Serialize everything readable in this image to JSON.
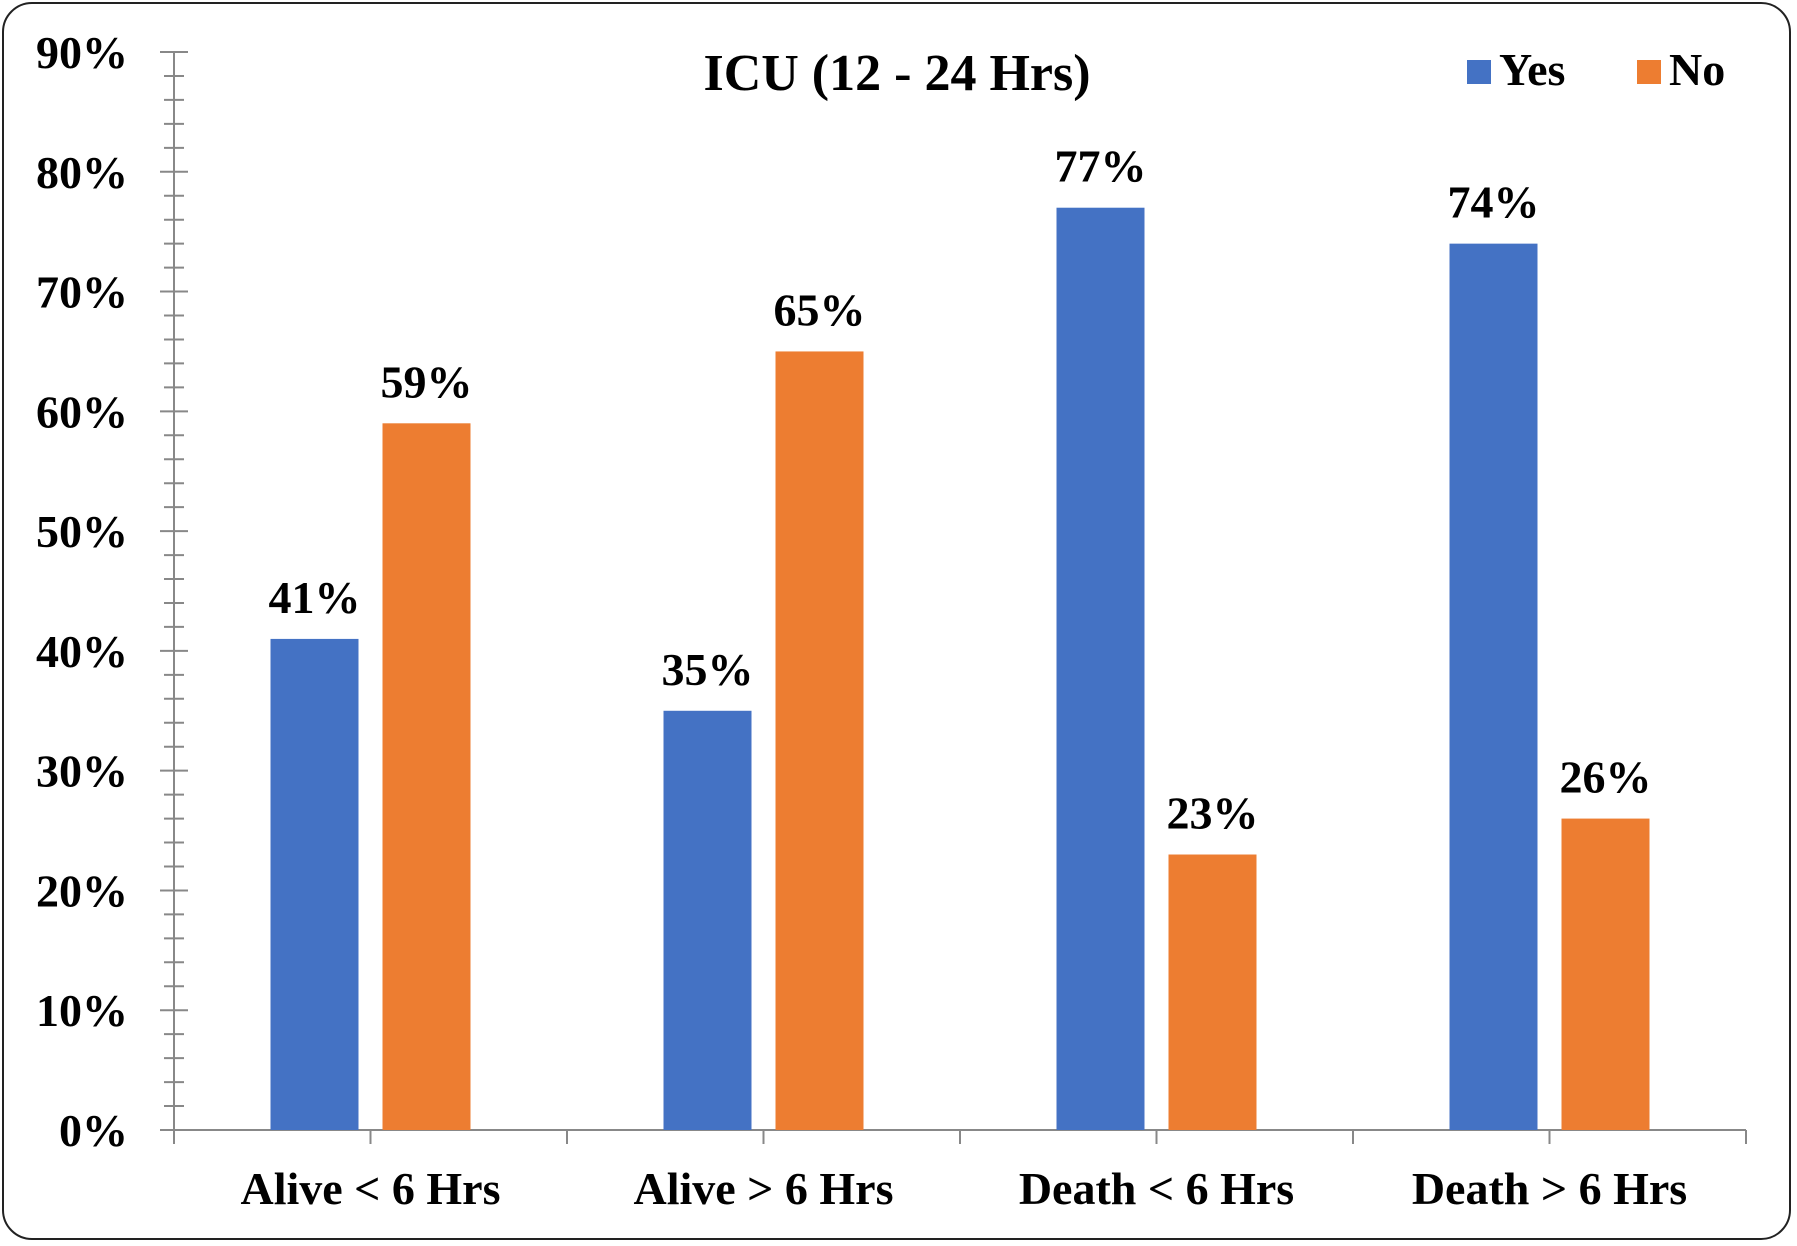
{
  "chart_data": {
    "type": "bar",
    "title": "ICU (12 - 24 Hrs)",
    "xlabel": "",
    "ylabel": "",
    "ylim": [
      0,
      90
    ],
    "yticks": [
      "0%",
      "10%",
      "20%",
      "30%",
      "40%",
      "50%",
      "60%",
      "70%",
      "80%",
      "90%"
    ],
    "categories": [
      "Alive < 6 Hrs",
      "Alive > 6 Hrs",
      "Death < 6 Hrs",
      "Death > 6 Hrs"
    ],
    "series": [
      {
        "name": "Yes",
        "color": "#4472C4",
        "values": [
          41,
          35,
          77,
          74
        ],
        "labels": [
          "41%",
          "35%",
          "77%",
          "74%"
        ]
      },
      {
        "name": "No",
        "color": "#ED7D31",
        "values": [
          59,
          65,
          23,
          26
        ],
        "labels": [
          "59%",
          "65%",
          "23%",
          "26%"
        ]
      }
    ],
    "legend_position": "top-right",
    "grid": false
  }
}
